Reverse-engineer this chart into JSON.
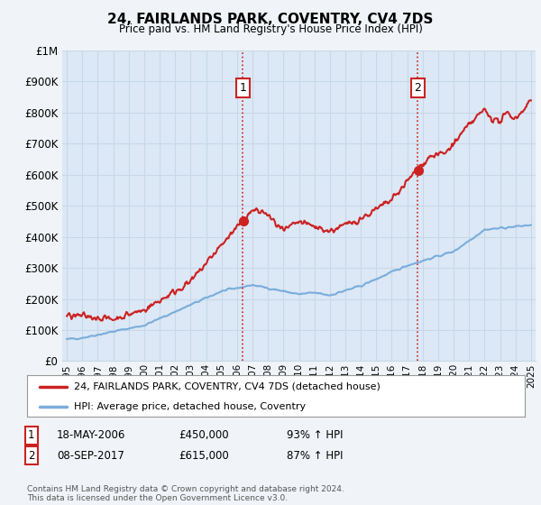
{
  "title": "24, FAIRLANDS PARK, COVENTRY, CV4 7DS",
  "subtitle": "Price paid vs. HM Land Registry's House Price Index (HPI)",
  "ylim": [
    0,
    1000000
  ],
  "yticks": [
    0,
    100000,
    200000,
    300000,
    400000,
    500000,
    600000,
    700000,
    800000,
    900000,
    1000000
  ],
  "ytick_labels": [
    "£0",
    "£100K",
    "£200K",
    "£300K",
    "£400K",
    "£500K",
    "£600K",
    "£700K",
    "£800K",
    "£900K",
    "£1M"
  ],
  "hpi_color": "#7aaddc",
  "price_color": "#cc2222",
  "vline_color": "#cc2222",
  "marker1_year": 2006.38,
  "marker2_year": 2017.69,
  "sale1_price": 450000,
  "sale2_price": 615000,
  "sale1_label": "1",
  "sale2_label": "2",
  "legend_label_price": "24, FAIRLANDS PARK, COVENTRY, CV4 7DS (detached house)",
  "legend_label_hpi": "HPI: Average price, detached house, Coventry",
  "table_row1": [
    "1",
    "18-MAY-2006",
    "£450,000",
    "93% ↑ HPI"
  ],
  "table_row2": [
    "2",
    "08-SEP-2017",
    "£615,000",
    "87% ↑ HPI"
  ],
  "footnote": "Contains HM Land Registry data © Crown copyright and database right 2024.\nThis data is licensed under the Open Government Licence v3.0.",
  "bg_color": "#f0f4f8",
  "plot_bg_color": "#dce8f5",
  "grid_color": "#c8d8e8"
}
